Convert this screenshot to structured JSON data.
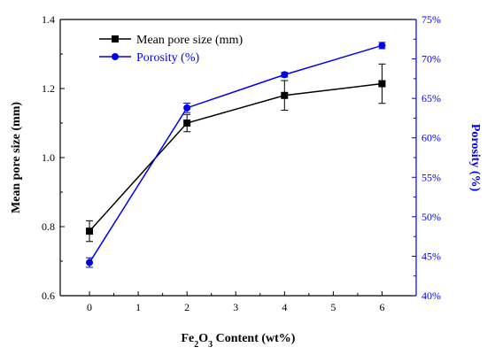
{
  "chart_data": {
    "type": "line",
    "xlabel_parts": [
      {
        "text": "Fe",
        "sub": false
      },
      {
        "text": "2",
        "sub": true
      },
      {
        "text": "O",
        "sub": false
      },
      {
        "text": "3",
        "sub": true
      },
      {
        "text": " Content (wt%)",
        "sub": false
      }
    ],
    "ylabel_left": "Mean pore size (mm)",
    "ylabel_right": "Porosity (%)",
    "xlim": [
      -0.6,
      6.7
    ],
    "x_ticks": [
      0,
      1,
      2,
      3,
      4,
      5,
      6
    ],
    "x_tick_labels": [
      "0",
      "1",
      "2",
      "3",
      "4",
      "5",
      "6"
    ],
    "ylim_left": [
      0.6,
      1.4
    ],
    "y_left_ticks": [
      0.6,
      0.8,
      1.0,
      1.2,
      1.4
    ],
    "y_left_tick_labels": [
      "0.6",
      "0.8",
      "1.0",
      "1.2",
      "1.4"
    ],
    "ylim_right": [
      40,
      75
    ],
    "y_right_ticks": [
      40,
      45,
      50,
      55,
      60,
      65,
      70,
      75
    ],
    "y_right_tick_labels": [
      "40%",
      "45%",
      "50%",
      "55%",
      "60%",
      "65%",
      "70%",
      "75%"
    ],
    "legend_position": "top-left",
    "series": [
      {
        "name": "Mean pore size (mm)",
        "axis": "left",
        "color": "#000000",
        "marker": "square",
        "x": [
          0,
          2,
          4,
          6
        ],
        "y": [
          0.787,
          1.1,
          1.18,
          1.214
        ],
        "err": [
          0.03,
          0.025,
          0.043,
          0.057
        ]
      },
      {
        "name": "Porosity (%)",
        "axis": "right",
        "color": "#0000ee",
        "marker": "circle",
        "x": [
          0,
          2,
          4,
          6
        ],
        "y": [
          44.2,
          63.8,
          68.0,
          71.7
        ],
        "err": [
          0.6,
          0.6,
          0.3,
          0.4
        ]
      }
    ]
  }
}
